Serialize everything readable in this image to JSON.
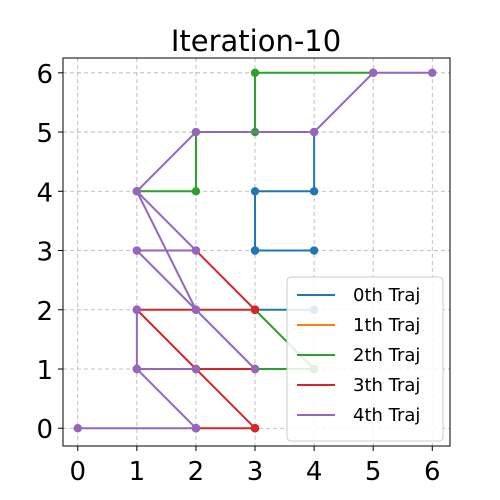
{
  "chart_data": {
    "type": "line",
    "title": "Iteration-10",
    "xlabel": "",
    "ylabel": "",
    "xlim": [
      -0.25,
      6.3
    ],
    "ylim": [
      -0.3,
      6.25
    ],
    "xticks": [
      "0",
      "1",
      "2",
      "3",
      "4",
      "5",
      "6"
    ],
    "yticks": [
      "0",
      "1",
      "2",
      "3",
      "4",
      "5",
      "6"
    ],
    "grid": true,
    "legend_position": "lower-right",
    "series": [
      {
        "name": "0th Traj",
        "color": "#1f77b4",
        "segments": [
          [
            [
              3,
              3
            ],
            [
              4,
              3
            ]
          ],
          [
            [
              3,
              3
            ],
            [
              3,
              4
            ],
            [
              4,
              4
            ],
            [
              4,
              5
            ]
          ],
          [
            [
              3,
              2
            ],
            [
              4,
              2
            ]
          ]
        ]
      },
      {
        "name": "1th Traj",
        "color": "#ff7f0e",
        "segments": []
      },
      {
        "name": "2th Traj",
        "color": "#2ca02c",
        "segments": [
          [
            [
              1,
              4
            ],
            [
              2,
              4
            ],
            [
              2,
              5
            ],
            [
              3,
              5
            ],
            [
              3,
              6
            ],
            [
              5,
              6
            ]
          ],
          [
            [
              3,
              2
            ],
            [
              4,
              1
            ]
          ],
          [
            [
              3,
              1
            ],
            [
              4,
              1
            ]
          ]
        ]
      },
      {
        "name": "3th Traj",
        "color": "#d62728",
        "segments": [
          [
            [
              1,
              2
            ],
            [
              3,
              2
            ]
          ],
          [
            [
              2,
              3
            ],
            [
              3,
              2
            ]
          ],
          [
            [
              1,
              2
            ],
            [
              2,
              1
            ],
            [
              3,
              0
            ]
          ],
          [
            [
              2,
              1
            ],
            [
              3,
              1
            ]
          ],
          [
            [
              2,
              0
            ],
            [
              3,
              0
            ]
          ]
        ]
      },
      {
        "name": "4th Traj",
        "color": "#9467bd",
        "segments": [
          [
            [
              0,
              0
            ],
            [
              2,
              0
            ]
          ],
          [
            [
              1,
              1
            ],
            [
              2,
              0
            ]
          ],
          [
            [
              1,
              1
            ],
            [
              2,
              1
            ]
          ],
          [
            [
              1,
              1
            ],
            [
              1,
              2
            ]
          ],
          [
            [
              1,
              3
            ],
            [
              2,
              3
            ]
          ],
          [
            [
              1,
              3
            ],
            [
              2,
              2
            ],
            [
              3,
              1
            ]
          ],
          [
            [
              1,
              4
            ],
            [
              2,
              3
            ]
          ],
          [
            [
              1,
              4
            ],
            [
              2,
              5
            ],
            [
              4,
              5
            ],
            [
              5,
              6
            ],
            [
              6,
              6
            ]
          ],
          [
            [
              1,
              4
            ],
            [
              2,
              2
            ]
          ]
        ]
      }
    ]
  }
}
